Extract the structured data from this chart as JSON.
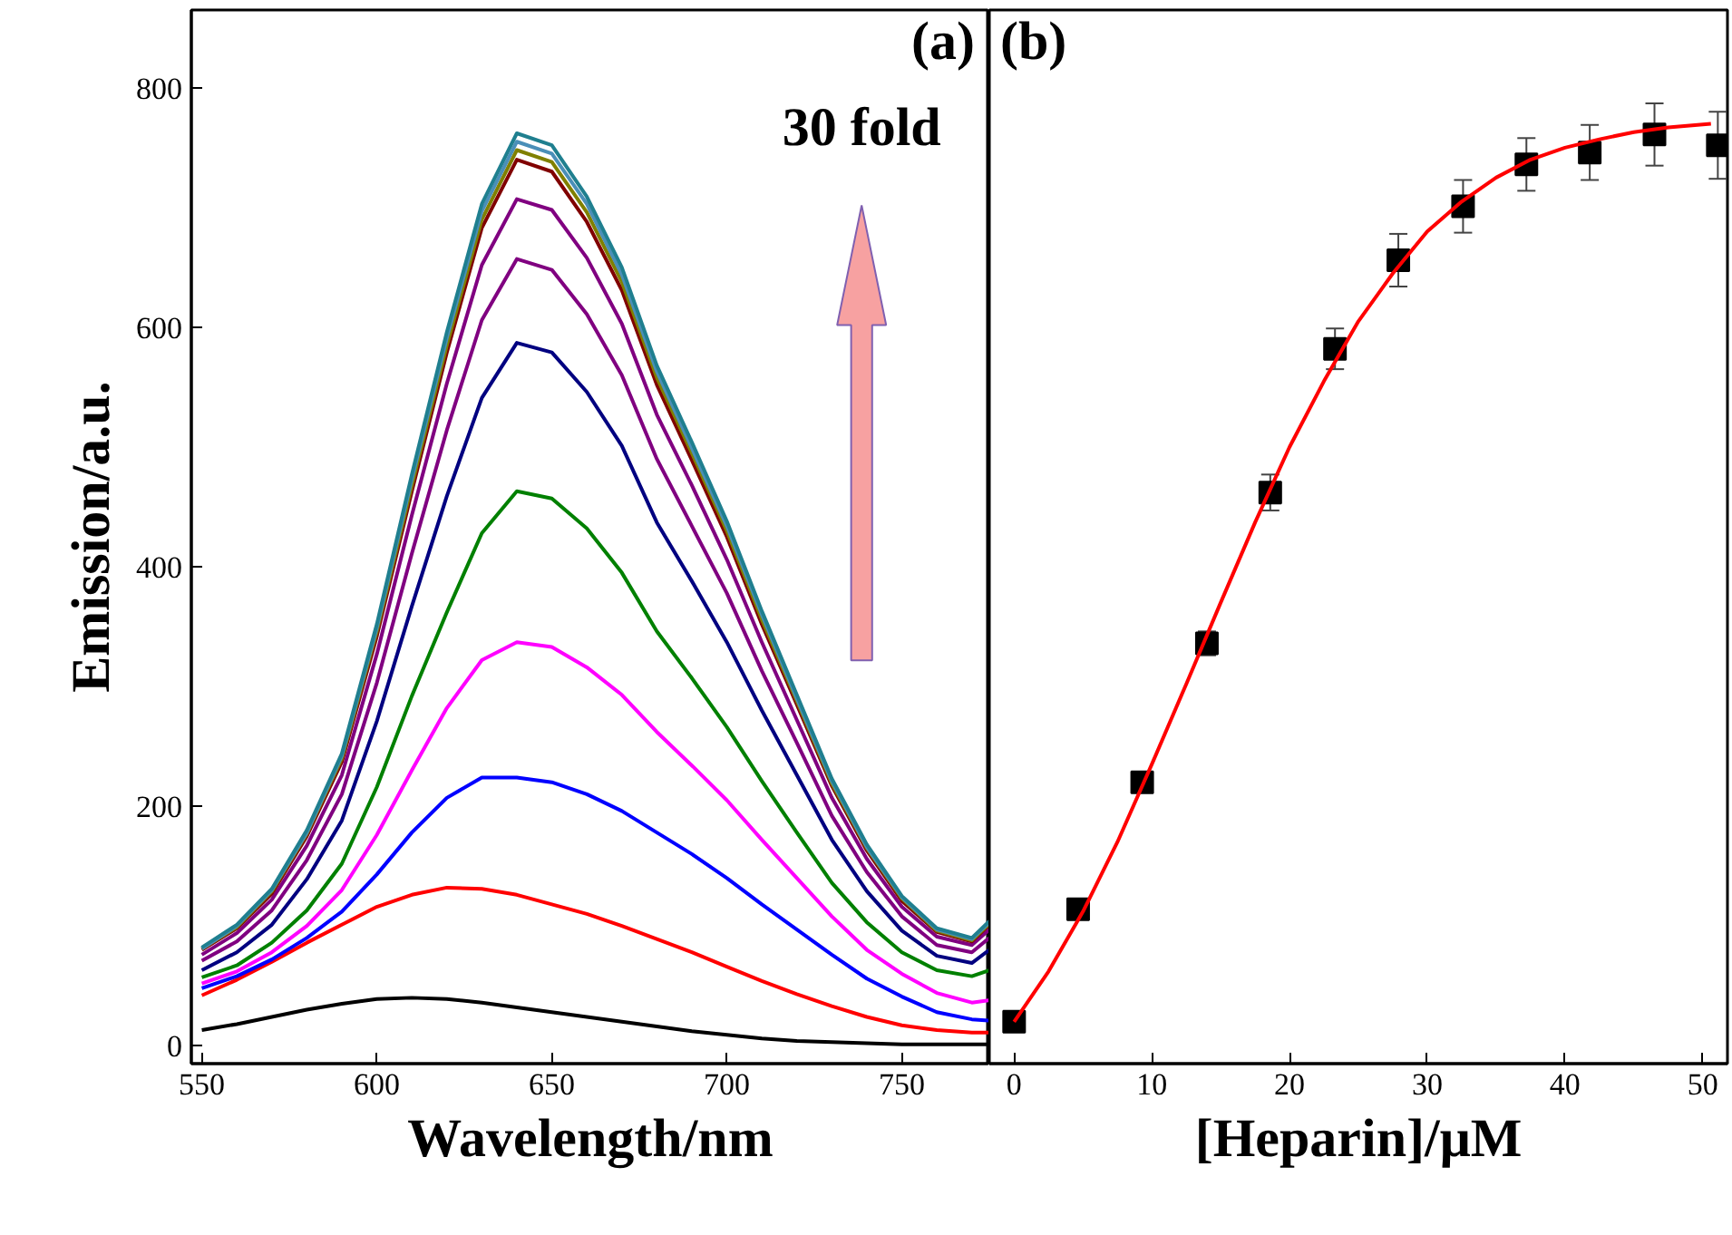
{
  "chart_data": [
    {
      "type": "line",
      "title": "(a)",
      "xlabel": "Wavelength/nm",
      "ylabel": "Emission/a.u.",
      "x": [
        550,
        560,
        570,
        580,
        590,
        600,
        610,
        620,
        630,
        640,
        650,
        660,
        670,
        680,
        690,
        700,
        710,
        720,
        730,
        740,
        750,
        760,
        770,
        775
      ],
      "series": [
        {
          "color": "#000000",
          "values": [
            13,
            18,
            24,
            30,
            35,
            39,
            40,
            39,
            36,
            32,
            28,
            24,
            20,
            16,
            12,
            9,
            6,
            4,
            3,
            2,
            1,
            1,
            1,
            1
          ]
        },
        {
          "color": "#ff0000",
          "values": [
            42,
            55,
            70,
            86,
            101,
            116,
            126,
            132,
            131,
            126,
            118,
            110,
            100,
            89,
            78,
            66,
            54,
            43,
            33,
            24,
            17,
            13,
            11,
            11
          ]
        },
        {
          "color": "#0000ff",
          "values": [
            48,
            58,
            72,
            90,
            112,
            143,
            178,
            207,
            224,
            224,
            220,
            210,
            196,
            178,
            160,
            140,
            118,
            97,
            76,
            56,
            41,
            28,
            22,
            21
          ]
        },
        {
          "color": "#ff00ff",
          "values": [
            52,
            62,
            78,
            100,
            130,
            176,
            230,
            282,
            322,
            337,
            333,
            316,
            293,
            262,
            234,
            205,
            172,
            140,
            108,
            80,
            60,
            44,
            36,
            38
          ]
        },
        {
          "color": "#008000",
          "values": [
            57,
            67,
            86,
            113,
            152,
            216,
            292,
            362,
            428,
            463,
            457,
            432,
            395,
            346,
            307,
            266,
            221,
            178,
            136,
            103,
            78,
            63,
            58,
            63
          ]
        },
        {
          "color": "#000080",
          "values": [
            63,
            78,
            101,
            139,
            188,
            271,
            367,
            459,
            541,
            587,
            579,
            546,
            501,
            437,
            388,
            337,
            280,
            226,
            172,
            129,
            96,
            75,
            69,
            80
          ]
        },
        {
          "color": "#800080",
          "values": [
            71,
            87,
            113,
            155,
            210,
            303,
            411,
            514,
            606,
            657,
            648,
            611,
            560,
            490,
            434,
            378,
            313,
            253,
            192,
            145,
            108,
            84,
            78,
            90
          ]
        },
        {
          "color": "#800080",
          "values": [
            76,
            94,
            122,
            167,
            226,
            327,
            443,
            553,
            652,
            707,
            698,
            658,
            603,
            527,
            468,
            406,
            337,
            272,
            207,
            156,
            116,
            91,
            84,
            97
          ]
        },
        {
          "color": "#800000",
          "values": [
            80,
            98,
            127,
            175,
            237,
            342,
            463,
            579,
            683,
            740,
            730,
            688,
            631,
            552,
            489,
            425,
            352,
            285,
            217,
            163,
            121,
            95,
            87,
            101
          ]
        },
        {
          "color": "#808000",
          "values": [
            81,
            99,
            129,
            177,
            240,
            346,
            468,
            585,
            690,
            748,
            738,
            696,
            638,
            558,
            495,
            430,
            356,
            288,
            219,
            165,
            123,
            96,
            88,
            102
          ]
        },
        {
          "color": "#4a8fb8",
          "values": [
            81,
            100,
            130,
            178,
            242,
            349,
            473,
            591,
            697,
            755,
            745,
            703,
            644,
            563,
            499,
            434,
            360,
            290,
            221,
            166,
            124,
            97,
            89,
            103
          ]
        },
        {
          "color": "#1f7f8f",
          "values": [
            82,
            101,
            131,
            180,
            244,
            352,
            477,
            596,
            703,
            762,
            752,
            709,
            650,
            568,
            504,
            438,
            363,
            293,
            223,
            168,
            125,
            98,
            90,
            104
          ]
        }
      ],
      "annotations": [
        "30 fold"
      ],
      "xlim": [
        547,
        775
      ],
      "xticks": [
        550,
        600,
        650,
        700,
        750
      ],
      "ylim": [
        -15,
        865
      ],
      "yticks": [
        0,
        200,
        400,
        600,
        800
      ]
    },
    {
      "type": "scatter",
      "title": "(b)",
      "xlabel": "[Heparin]/μM",
      "series": [
        {
          "type": "scatter",
          "marker": "square",
          "color": "#000000",
          "x": [
            0,
            4.65,
            9.3,
            14,
            18.6,
            23.3,
            27.9,
            32.6,
            37.2,
            41.8,
            46.5,
            51.1
          ],
          "values": [
            20,
            114,
            220,
            336,
            462,
            582,
            656,
            701,
            736,
            746,
            761,
            752
          ],
          "errors": [
            null,
            null,
            null,
            10,
            15,
            17,
            22,
            22,
            22,
            23,
            26,
            28
          ]
        },
        {
          "type": "line",
          "marker": "none",
          "color": "#ff0000",
          "x": [
            0,
            2.5,
            5,
            7.5,
            10,
            12.5,
            15,
            17.5,
            20,
            22.5,
            25,
            27.5,
            30,
            32.5,
            35,
            37.5,
            40,
            42.5,
            45,
            47.5,
            50.6
          ],
          "values": [
            20,
            62,
            112,
            170,
            235,
            302,
            370,
            437,
            500,
            555,
            605,
            645,
            680,
            705,
            725,
            740,
            750,
            757,
            763,
            767,
            770
          ]
        }
      ],
      "xlim": [
        -1.8,
        51.8
      ],
      "xticks": [
        0,
        10,
        20,
        30,
        40,
        50
      ],
      "ylim": [
        -15,
        865
      ],
      "yticks": [
        0,
        200,
        400,
        600,
        800
      ],
      "tick_labels": "x"
    }
  ]
}
